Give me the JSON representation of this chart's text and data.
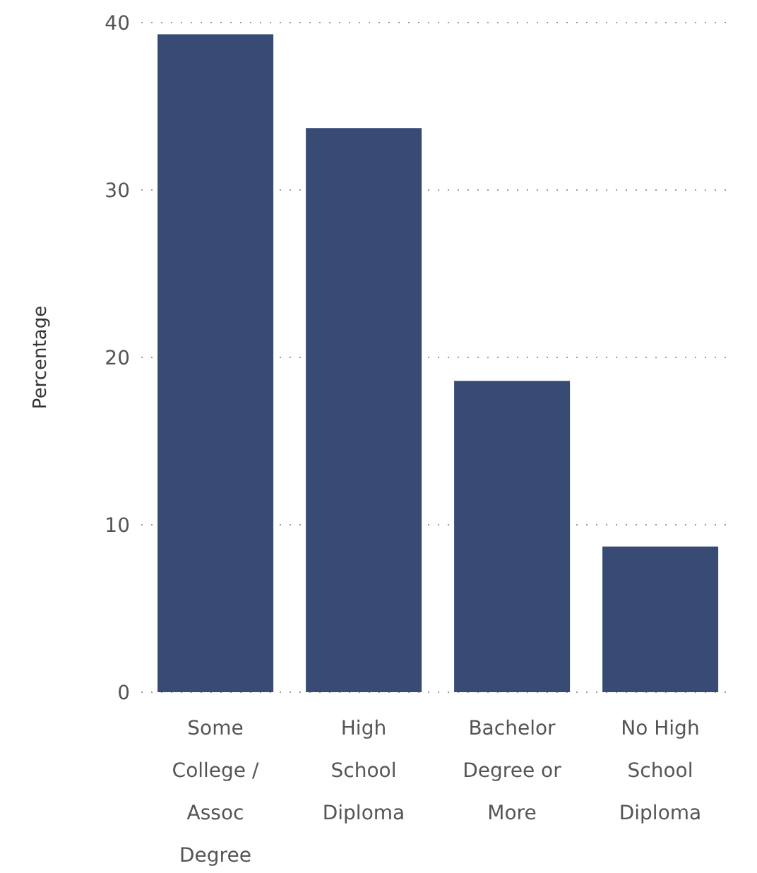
{
  "chart_data": {
    "type": "bar",
    "ylabel": "Percentage",
    "categories": [
      "Some College / Assoc Degree",
      "High School Diploma",
      "Bachelor Degree or More",
      "No High School Diploma"
    ],
    "values": [
      39.3,
      33.7,
      18.6,
      8.7
    ],
    "color": "#374b74",
    "ylim": [
      0,
      40
    ],
    "yticks": [
      0,
      10,
      20,
      30,
      40
    ],
    "grid": "y"
  }
}
